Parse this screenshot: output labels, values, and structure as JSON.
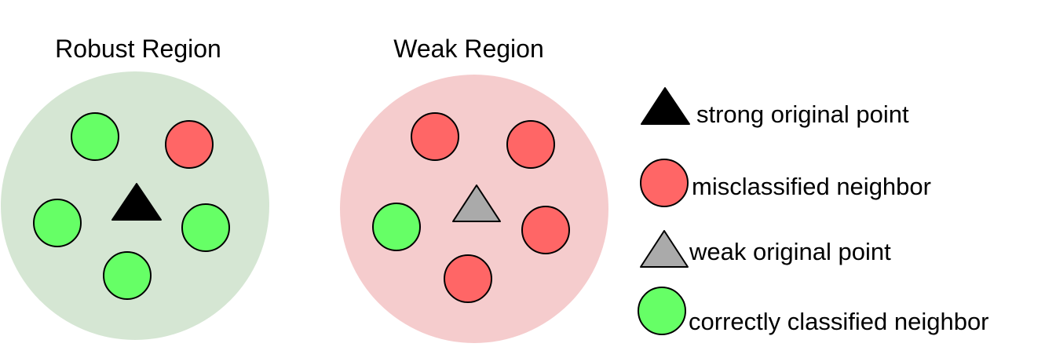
{
  "regions": [
    {
      "title": "Robust Region",
      "background_color": "#d5e6d3",
      "original_point": "strong",
      "neighbors": [
        "correct",
        "misclassified",
        "correct",
        "correct",
        "correct"
      ]
    },
    {
      "title": "Weak Region",
      "background_color": "#f5cccd",
      "original_point": "weak",
      "neighbors": [
        "misclassified",
        "misclassified",
        "correct",
        "misclassified",
        "misclassified"
      ]
    }
  ],
  "legend": [
    {
      "marker": "black-triangle-icon",
      "label": "strong original point"
    },
    {
      "marker": "red-circle-icon",
      "label": "misclassified neighbor"
    },
    {
      "marker": "gray-triangle-icon",
      "label": "weak original point"
    },
    {
      "marker": "green-circle-icon",
      "label": "correctly classified neighbor"
    }
  ],
  "colors": {
    "strong_point": "#000000",
    "weak_point": "#aaaaaa",
    "misclassified": "#ff6666",
    "correct": "#66ff66",
    "outline": "#000000"
  }
}
